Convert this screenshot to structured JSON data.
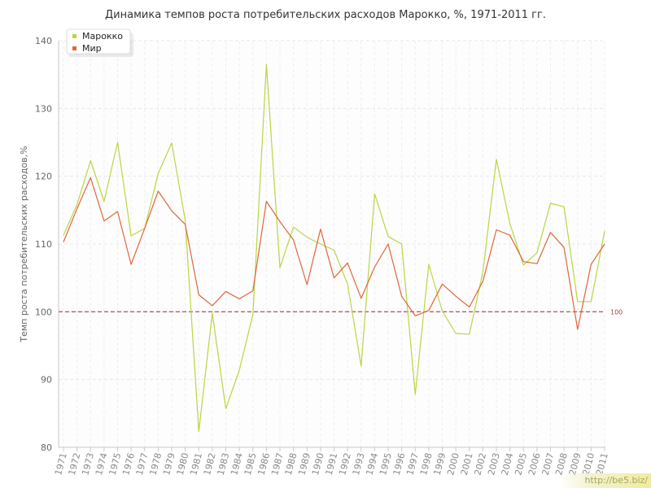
{
  "chart_data": {
    "type": "line",
    "title": "Динамика темпов роста потребительских расходов Марокко, %, 1971-2011 гг.",
    "xlabel": "",
    "ylabel": "Темп роста потребительских расходов,%",
    "ylim": [
      80,
      140
    ],
    "yticks": [
      80,
      90,
      100,
      110,
      120,
      130,
      140
    ],
    "categories": [
      "1971",
      "1972",
      "1973",
      "1974",
      "1975",
      "1976",
      "1977",
      "1978",
      "1979",
      "1980",
      "1981",
      "1982",
      "1983",
      "1984",
      "1985",
      "1986",
      "1987",
      "1988",
      "1989",
      "1990",
      "1991",
      "1992",
      "1993",
      "1994",
      "1995",
      "1996",
      "1997",
      "1998",
      "1999",
      "2000",
      "2001",
      "2002",
      "2003",
      "2004",
      "2005",
      "2006",
      "2007",
      "2008",
      "2009",
      "2010",
      "2011"
    ],
    "series": [
      {
        "name": "Марокко",
        "color": "#b9d642",
        "values": [
          111.3,
          115.8,
          122.3,
          116.3,
          125.0,
          111.2,
          112.3,
          120.4,
          124.9,
          113.5,
          82.3,
          99.8,
          85.7,
          91.4,
          99.6,
          136.5,
          106.5,
          112.5,
          111.0,
          110.0,
          109.1,
          104.1,
          92.0,
          117.4,
          111.1,
          110.0,
          87.8,
          107.0,
          100.1,
          96.8,
          96.7,
          105.9,
          122.5,
          113.0,
          106.9,
          108.7,
          116.0,
          115.5,
          101.5,
          101.5,
          111.9
        ]
      },
      {
        "name": "Мир",
        "color": "#e0663a",
        "values": [
          110.3,
          115.2,
          119.8,
          113.4,
          114.8,
          107.0,
          112.3,
          117.8,
          114.9,
          112.9,
          102.5,
          100.9,
          103.0,
          101.9,
          103.1,
          116.3,
          113.3,
          110.6,
          104.0,
          112.2,
          105.0,
          107.2,
          102.0,
          106.6,
          110.0,
          102.3,
          99.4,
          100.2,
          104.1,
          102.3,
          100.7,
          104.5,
          112.1,
          111.3,
          107.4,
          107.1,
          111.7,
          109.5,
          97.4,
          107.0,
          110.0
        ]
      }
    ],
    "reference_line": {
      "value": 100,
      "label": "100",
      "color": "#a2404f"
    },
    "legend": {
      "position": "top-left",
      "items": [
        {
          "label": "Марокко",
          "color": "#b9d642"
        },
        {
          "label": "Мир",
          "color": "#e0663a"
        }
      ]
    },
    "grid": true
  },
  "watermark": "http://be5.biz/"
}
